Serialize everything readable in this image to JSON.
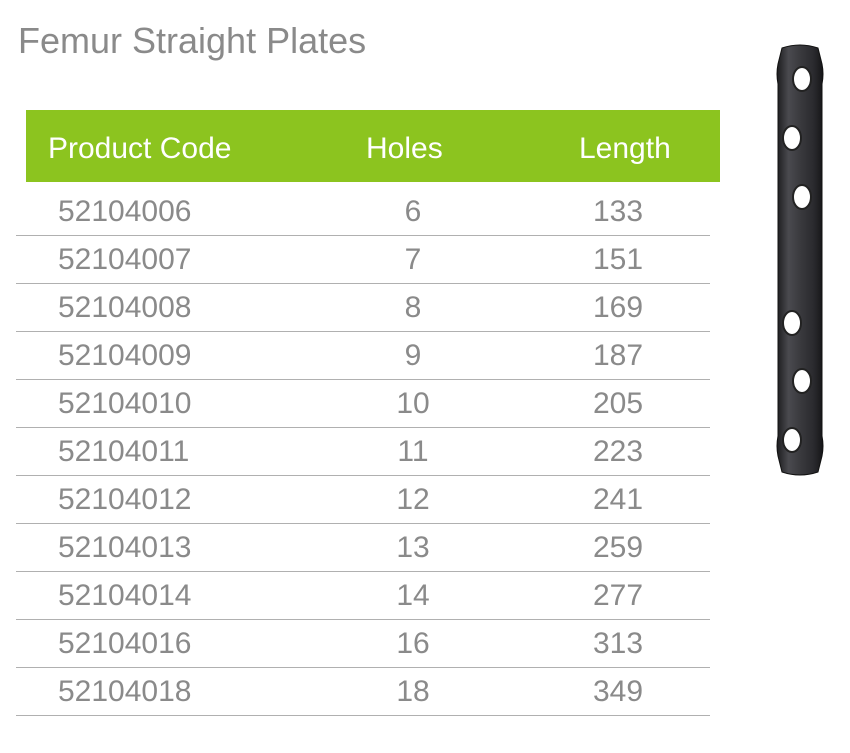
{
  "title": "Femur Straight Plates",
  "table": {
    "headers": {
      "code": "Product Code",
      "holes": "Holes",
      "length": "Length"
    },
    "header_color": "#8cc41f",
    "rows": [
      {
        "code": "52104006",
        "holes": "6",
        "length": "133"
      },
      {
        "code": "52104007",
        "holes": "7",
        "length": "151"
      },
      {
        "code": "52104008",
        "holes": "8",
        "length": "169"
      },
      {
        "code": "52104009",
        "holes": "9",
        "length": "187"
      },
      {
        "code": "52104010",
        "holes": "10",
        "length": "205"
      },
      {
        "code": "52104011",
        "holes": "11",
        "length": "223"
      },
      {
        "code": "52104012",
        "holes": "12",
        "length": "241"
      },
      {
        "code": "52104013",
        "holes": "13",
        "length": "259"
      },
      {
        "code": "52104014",
        "holes": "14",
        "length": "277"
      },
      {
        "code": "52104016",
        "holes": "16",
        "length": "313"
      },
      {
        "code": "52104018",
        "holes": "18",
        "length": "349"
      }
    ]
  },
  "image": {
    "icon": "femur-straight-plate-image"
  }
}
